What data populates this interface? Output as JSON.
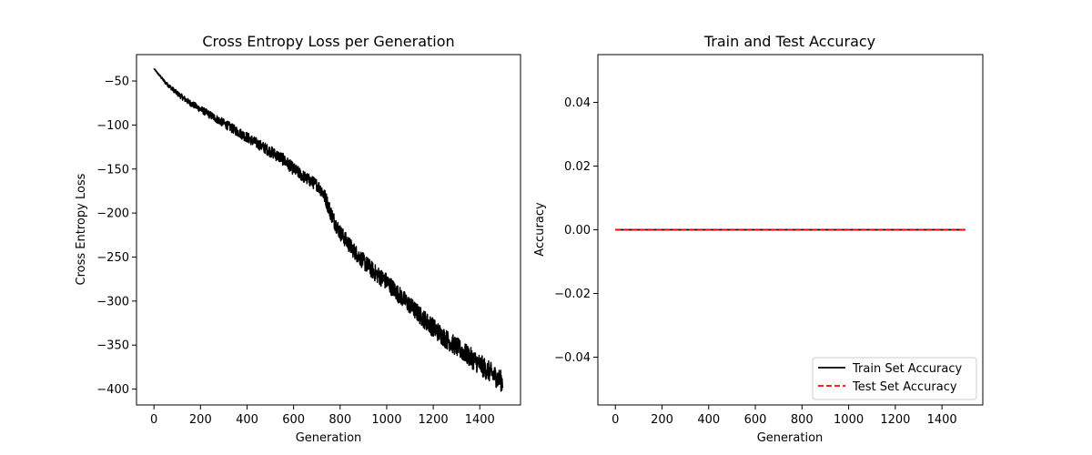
{
  "chart_data": [
    {
      "type": "line",
      "title": "Cross Entropy Loss per Generation",
      "xlabel": "Generation",
      "ylabel": "Cross Entropy Loss",
      "xlim": [
        -75,
        1575
      ],
      "ylim": [
        -418,
        -20
      ],
      "xticks": [
        0,
        200,
        400,
        600,
        800,
        1000,
        1200,
        1400
      ],
      "xtick_labels": [
        "0",
        "200",
        "400",
        "600",
        "800",
        "1000",
        "1200",
        "1400"
      ],
      "yticks": [
        -50,
        -100,
        -150,
        -200,
        -250,
        -300,
        -350,
        -400
      ],
      "ytick_labels": [
        "−50",
        "−100",
        "−150",
        "−200",
        "−250",
        "−300",
        "−350",
        "−400"
      ],
      "grid": false,
      "series": [
        {
          "color": "#000000",
          "style": "solid",
          "x": [
            0,
            50,
            100,
            150,
            200,
            250,
            300,
            350,
            400,
            450,
            500,
            550,
            600,
            650,
            700,
            720,
            740,
            760,
            780,
            800,
            850,
            900,
            950,
            1000,
            1050,
            1100,
            1150,
            1200,
            1250,
            1300,
            1350,
            1400,
            1450,
            1499
          ],
          "y": [
            -36,
            -52,
            -64,
            -74,
            -82,
            -90,
            -98,
            -106,
            -114,
            -122,
            -130,
            -138,
            -150,
            -160,
            -168,
            -174,
            -185,
            -200,
            -212,
            -222,
            -240,
            -255,
            -268,
            -278,
            -292,
            -305,
            -318,
            -330,
            -342,
            -352,
            -362,
            -372,
            -382,
            -392
          ],
          "noise": [
            0.5,
            2,
            3,
            3.5,
            4,
            4.5,
            5,
            5.5,
            6,
            6,
            6.5,
            7,
            7,
            7,
            7,
            8,
            9,
            9,
            9,
            9,
            9,
            9.5,
            10,
            10,
            10,
            10,
            10.5,
            11,
            11,
            11,
            11.5,
            12,
            12,
            12
          ]
        }
      ]
    },
    {
      "type": "line",
      "title": "Train and Test Accuracy",
      "xlabel": "Generation",
      "ylabel": "Accuracy",
      "xlim": [
        -75,
        1575
      ],
      "ylim": [
        -0.055,
        0.055
      ],
      "xticks": [
        0,
        200,
        400,
        600,
        800,
        1000,
        1200,
        1400
      ],
      "xtick_labels": [
        "0",
        "200",
        "400",
        "600",
        "800",
        "1000",
        "1200",
        "1400"
      ],
      "yticks": [
        0.04,
        0.02,
        0.0,
        -0.02,
        -0.04
      ],
      "ytick_labels": [
        "0.04",
        "0.02",
        "0.00",
        "−0.02",
        "−0.04"
      ],
      "grid": false,
      "legend": "lower-right",
      "series": [
        {
          "name": "Train Set Accuracy",
          "color": "#000000",
          "style": "solid",
          "x": [
            0,
            1500
          ],
          "y": [
            0,
            0
          ]
        },
        {
          "name": "Test Set Accuracy",
          "color": "#ff0000",
          "style": "dashed",
          "x": [
            0,
            1500
          ],
          "y": [
            0,
            0
          ]
        }
      ]
    }
  ]
}
